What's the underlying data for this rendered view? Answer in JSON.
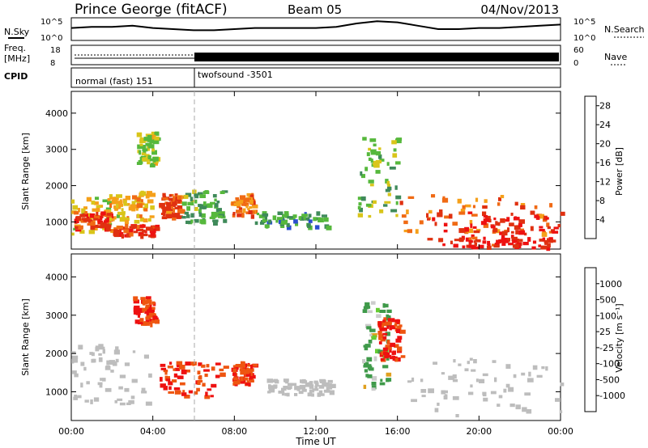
{
  "header": {
    "title": "Prince George (fitACF)",
    "beam": "Beam 05",
    "date": "04/Nov/2013"
  },
  "status_panels": {
    "nsky": {
      "label": "N.Sky",
      "tick_top": "10^5",
      "tick_bottom": "10^0"
    },
    "nsearch": {
      "label": "N.Search",
      "tick_top": "10^5",
      "tick_bottom": "10^0"
    },
    "freq": {
      "label_line1": "Freq.",
      "label_line2": "[MHz]",
      "tick_top": "18",
      "tick_bottom": "8"
    },
    "nave": {
      "label": "Nave",
      "tick_top": "60",
      "tick_bottom": "0"
    },
    "cpid": {
      "label": "CPID",
      "modes": [
        {
          "name": "normal (fast) 151",
          "start_hour": 0,
          "end_hour": 6
        },
        {
          "name": "twofsound -3501",
          "start_hour": 6,
          "end_hour": 24
        }
      ]
    }
  },
  "colors": {
    "power": [
      "#1a1aff",
      "#2a4ecf",
      "#3f8a5a",
      "#56b83c",
      "#d9c51a",
      "#f5a01a",
      "#f06a14",
      "#e03010",
      "#ee1111"
    ],
    "velocity": [
      "#2a3ec8",
      "#3f72a8",
      "#3f9a4a",
      "#66cc33",
      "#c0c0c0",
      "#cccccc",
      "#e0a020",
      "#f08010",
      "#ee5510",
      "#ee1111"
    ],
    "ground_scatter": "#bdbdbd"
  },
  "chart_data": [
    {
      "type": "heatmap",
      "name": "power-panel",
      "xlabel": "",
      "ylabel": "Slant Range [km]",
      "xlim_hours": [
        0,
        24
      ],
      "ylim_km": [
        250,
        4600
      ],
      "y_ticks": [
        "1000",
        "2000",
        "3000",
        "4000"
      ],
      "colorbar": {
        "label": "Power [dB]",
        "ticks": [
          "4",
          "8",
          "12",
          "16",
          "20",
          "24",
          "28"
        ],
        "range": [
          0,
          30
        ]
      },
      "scatter_regions": [
        {
          "t0": 0.0,
          "t1": 2.4,
          "r0": 700,
          "r1": 1700,
          "value": 16
        },
        {
          "t0": 0.1,
          "t1": 2.0,
          "r0": 800,
          "r1": 1300,
          "value": 26
        },
        {
          "t0": 1.8,
          "t1": 3.9,
          "r0": 1050,
          "r1": 1900,
          "value": 18
        },
        {
          "t0": 2.0,
          "t1": 4.2,
          "r0": 650,
          "r1": 950,
          "value": 26
        },
        {
          "t0": 3.2,
          "t1": 4.1,
          "r0": 2600,
          "r1": 3500,
          "value": 14
        },
        {
          "t0": 4.3,
          "t1": 5.4,
          "r0": 1100,
          "r1": 1800,
          "value": 24
        },
        {
          "t0": 5.4,
          "t1": 7.5,
          "r0": 1000,
          "r1": 1900,
          "value": 10
        },
        {
          "t0": 7.8,
          "t1": 8.9,
          "r0": 1200,
          "r1": 1800,
          "value": 22
        },
        {
          "t0": 9.0,
          "t1": 12.8,
          "r0": 900,
          "r1": 1300,
          "value": 9
        },
        {
          "t0": 14.0,
          "t1": 16.0,
          "r0": 1100,
          "r1": 3400,
          "value": 12
        },
        {
          "t0": 16.0,
          "t1": 24.0,
          "r0": 700,
          "r1": 1800,
          "value": 22
        },
        {
          "t0": 17.0,
          "t1": 24.0,
          "r0": 500,
          "r1": 1300,
          "value": 28
        },
        {
          "t0": 18.2,
          "t1": 23.5,
          "r0": 320,
          "r1": 600,
          "value": 28
        }
      ]
    },
    {
      "type": "heatmap",
      "name": "velocity-panel",
      "xlabel": "Time UT",
      "ylabel": "Slant Range [km]",
      "xlim_hours": [
        0,
        24
      ],
      "ylim_km": [
        250,
        4600
      ],
      "y_ticks": [
        "1000",
        "2000",
        "3000",
        "4000"
      ],
      "x_ticks": [
        "00:00",
        "04:00",
        "08:00",
        "12:00",
        "16:00",
        "20:00",
        "00:00"
      ],
      "colorbar": {
        "label": "Velocity [m s⁻¹]",
        "ticks": [
          "1000",
          "500",
          "100",
          "25",
          "-25",
          "-100",
          "-500",
          "-1000"
        ],
        "range": [
          -1000,
          1000
        ]
      },
      "scatter_regions": [
        {
          "t0": 0.0,
          "t1": 3.8,
          "r0": 700,
          "r1": 2300,
          "value": "gs"
        },
        {
          "t0": 3.0,
          "t1": 4.1,
          "r0": 2800,
          "r1": 3500,
          "value": -500
        },
        {
          "t0": 4.3,
          "t1": 7.5,
          "r0": 900,
          "r1": 1800,
          "value": -500
        },
        {
          "t0": 7.8,
          "t1": 8.9,
          "r0": 1200,
          "r1": 1800,
          "value": -500
        },
        {
          "t0": 9.5,
          "t1": 12.8,
          "r0": 950,
          "r1": 1350,
          "value": "gs"
        },
        {
          "t0": 14.2,
          "t1": 15.5,
          "r0": 1100,
          "r1": 3400,
          "value": 100
        },
        {
          "t0": 15.0,
          "t1": 16.2,
          "r0": 1800,
          "r1": 3000,
          "value": -500
        },
        {
          "t0": 16.0,
          "t1": 24.0,
          "r0": 400,
          "r1": 1900,
          "value": "gs"
        }
      ]
    }
  ],
  "timeseries": {
    "nsky_level": [
      0.55,
      0.6,
      0.6,
      0.65,
      0.55,
      0.5,
      0.45,
      0.45,
      0.5,
      0.55,
      0.55,
      0.55,
      0.55,
      0.6,
      0.75,
      0.85,
      0.8,
      0.65,
      0.5,
      0.5,
      0.55,
      0.55,
      0.6,
      0.65,
      0.7
    ],
    "freq_mhz_before": 10.5,
    "freq_mhz_after": 11.0,
    "nave_after": 12
  }
}
